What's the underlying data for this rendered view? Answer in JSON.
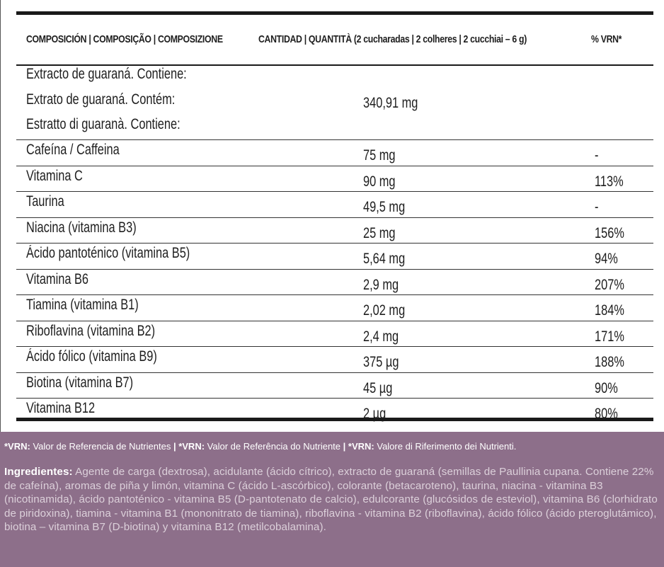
{
  "header": {
    "composition": "COMPOSICIÓN | COMPOSIÇÃO | COMPOSIZIONE",
    "quantity": "CANTIDAD | QUANTITÀ (2 cucharadas | 2 colheres | 2 cucchiai – 6 g)",
    "vrn": "% VRN*"
  },
  "guarana": {
    "lines": [
      "Extracto de guaraná. Contiene:",
      "Extrato de guaraná. Contém:",
      "Estratto di guaranà. Contiene:"
    ],
    "amount": "340,91 mg"
  },
  "rows": [
    {
      "name": "Cafeína / Caffeina",
      "amount": "75 mg",
      "vrn": "-"
    },
    {
      "name": "Vitamina C",
      "amount": "90 mg",
      "vrn": "113%"
    },
    {
      "name": "Taurina",
      "amount": "49,5 mg",
      "vrn": "-"
    },
    {
      "name": "Niacina (vitamina B3)",
      "amount": "25 mg",
      "vrn": "156%"
    },
    {
      "name": "Ácido pantoténico (vitamina B5)",
      "amount": "5,64 mg",
      "vrn": "94%"
    },
    {
      "name": "Vitamina B6",
      "amount": "2,9 mg",
      "vrn": "207%"
    },
    {
      "name": "Tiamina (vitamina B1)",
      "amount": "2,02 mg",
      "vrn": "184%"
    },
    {
      "name": "Riboflavina (vitamina B2)",
      "amount": "2,4 mg",
      "vrn": "171%"
    },
    {
      "name": "Ácido fólico (vitamina B9)",
      "amount": "375 µg",
      "vrn": "188%"
    },
    {
      "name": "Biotina (vitamina B7)",
      "amount": "45 µg",
      "vrn": "90%"
    },
    {
      "name": "Vitamina B12",
      "amount": "2 µg",
      "vrn": "80%"
    }
  ],
  "footer": {
    "vrn_label": "*VRN:",
    "vrn_es": " Valor de Referencia de Nutrientes ",
    "vrn_pt": " Valor de Referência do Nutriente ",
    "vrn_it": " Valore di Riferimento dei Nutrienti.",
    "separator": "|",
    "ingredients_label": "Ingredientes:",
    "ingredients_text": " Agente de carga (dextrosa), acidulante (ácido cítrico), extracto de guaraná (semillas de Paullinia cupana. Contiene 22% de cafeína), aromas de piña y limón, vitamina C (ácido L-ascórbico), colorante (betacaroteno), taurina, niacina - vitamina B3 (nicotinamida), ácido pantoténico - vitamina B5 (D-pantotenato de calcio), edulcorante (glucósidos de esteviol), vitamina B6 (clorhidrato de piridoxina), tiamina - vitamina B1 (mononitrato de tiamina), riboflavina - vitamina B2 (riboflavina), ácido fólico (ácido pteroglutámico), biotina – vitamina B7 (D-biotina) y vitamina B12 (metilcobalamina)."
  }
}
